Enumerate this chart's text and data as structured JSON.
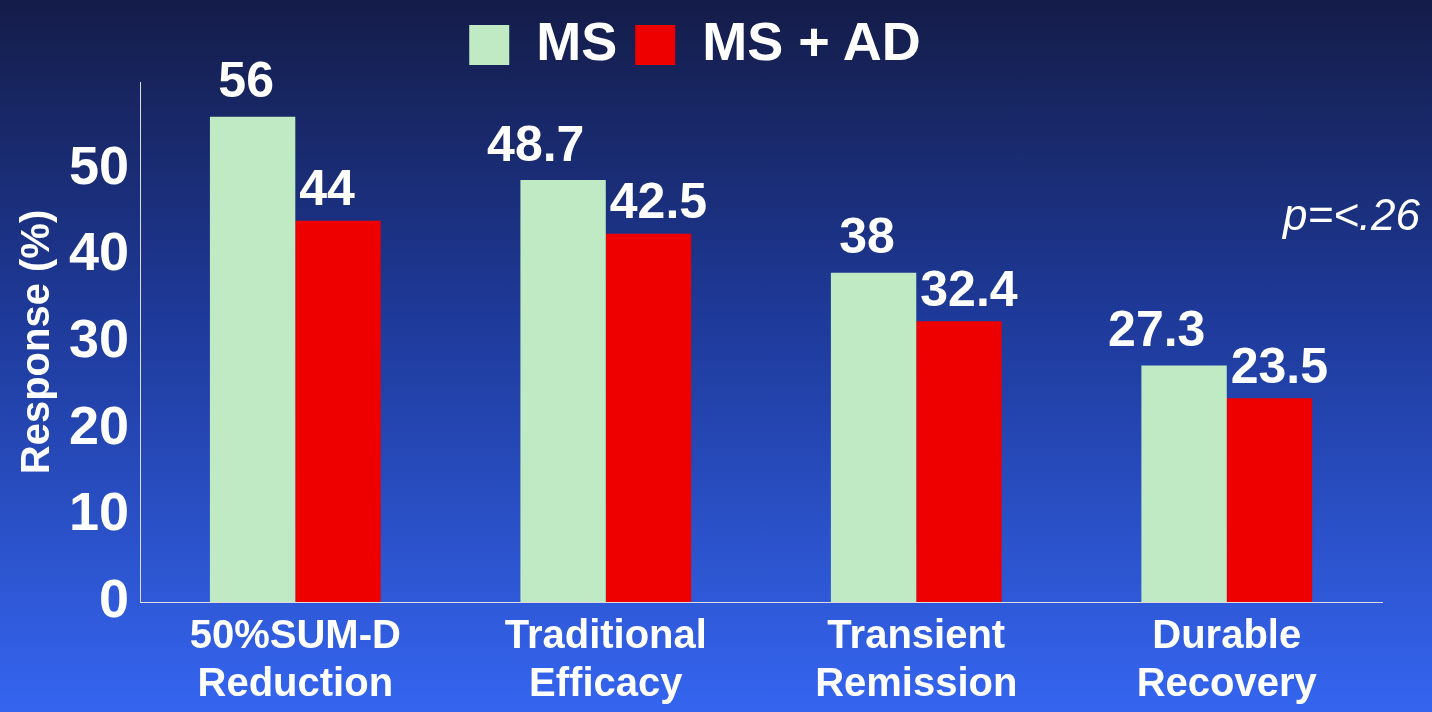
{
  "chart_data": {
    "type": "bar",
    "categories": [
      "50%SUM-D Reduction",
      "Traditional Efficacy",
      "Transient Remission",
      "Durable Recovery"
    ],
    "series": [
      {
        "name": "MS",
        "color": "#bfeac4",
        "values": [
          56,
          48.7,
          38,
          27.3
        ]
      },
      {
        "name": "MS + AD",
        "color": "#ee0000",
        "values": [
          44,
          42.5,
          32.4,
          23.5
        ]
      }
    ],
    "ylabel": "Response (%)",
    "ylim": [
      0,
      60
    ],
    "yticks": [
      0,
      10,
      20,
      30,
      40,
      50
    ],
    "annotations": [
      "p=<.26"
    ],
    "data_labels": true,
    "legend": "top",
    "grid": false
  }
}
